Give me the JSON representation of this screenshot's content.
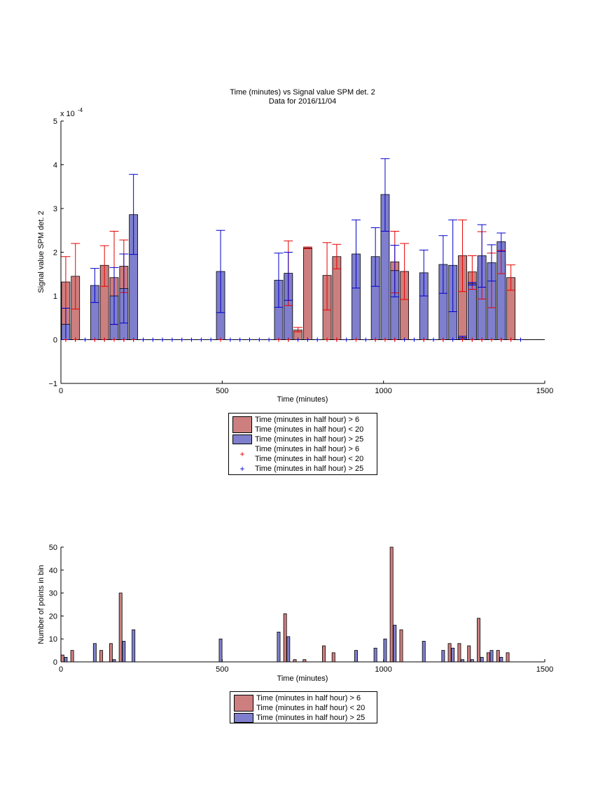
{
  "colors": {
    "red_bar": "#cd7f7f",
    "blue_bar": "#7f7fcd",
    "red_err": "#e60000",
    "blue_err": "#0000cc",
    "axis": "#000000"
  },
  "chart_data": [
    {
      "type": "bar",
      "title": "Time (minutes) vs Signal value SPM det. 2",
      "subtitle": "Data for 2016/11/04",
      "xlabel": "Time (minutes)",
      "ylabel": "Signal value SPM det. 2",
      "y_multiplier_label": "x 10",
      "y_multiplier_exp": "-4",
      "xlim": [
        0,
        1500
      ],
      "ylim": [
        -1,
        5
      ],
      "xticks": [
        "0",
        "500",
        "1000",
        "1500"
      ],
      "yticks": [
        "−1",
        "0",
        "1",
        "2",
        "3",
        "4",
        "5"
      ],
      "series": [
        {
          "name": "Time (minutes in half hour) > 6 Time (minutes in half hour) < 20",
          "color": "red",
          "points": [
            {
              "x": 15,
              "y": 1.32,
              "lo": 0.72,
              "hi": 1.9
            },
            {
              "x": 45,
              "y": 1.45,
              "lo": 0.7,
              "hi": 2.2
            },
            {
              "x": 135,
              "y": 1.7,
              "lo": 1.22,
              "hi": 2.15
            },
            {
              "x": 165,
              "y": 1.42,
              "lo": 0.35,
              "hi": 2.48
            },
            {
              "x": 195,
              "y": 1.68,
              "lo": 1.08,
              "hi": 2.28
            },
            {
              "x": 705,
              "y": 1.48,
              "lo": 0.78,
              "hi": 2.26
            },
            {
              "x": 735,
              "y": 0.22,
              "lo": 0.18,
              "hi": 0.28
            },
            {
              "x": 765,
              "y": 2.1,
              "lo": 2.08,
              "hi": 2.12
            },
            {
              "x": 825,
              "y": 1.47,
              "lo": 0.68,
              "hi": 2.22
            },
            {
              "x": 855,
              "y": 1.9,
              "lo": 1.62,
              "hi": 2.18
            },
            {
              "x": 1035,
              "y": 1.78,
              "lo": 1.07,
              "hi": 2.48
            },
            {
              "x": 1065,
              "y": 1.56,
              "lo": 0.92,
              "hi": 2.2
            },
            {
              "x": 1245,
              "y": 1.92,
              "lo": 1.1,
              "hi": 2.74
            },
            {
              "x": 1275,
              "y": 1.55,
              "lo": 1.15,
              "hi": 1.92
            },
            {
              "x": 1305,
              "y": 1.65,
              "lo": 0.93,
              "hi": 2.47
            },
            {
              "x": 1335,
              "y": 1.36,
              "lo": 0.73,
              "hi": 1.98
            },
            {
              "x": 1365,
              "y": 1.78,
              "lo": 1.51,
              "hi": 2.04
            },
            {
              "x": 1395,
              "y": 1.42,
              "lo": 1.13,
              "hi": 1.71
            }
          ]
        },
        {
          "name": "Time (minutes in half hour) > 25",
          "color": "blue",
          "points": [
            {
              "x": 15,
              "y": 0.35,
              "lo": 0.0,
              "hi": 0.72
            },
            {
              "x": 105,
              "y": 1.24,
              "lo": 0.85,
              "hi": 1.63
            },
            {
              "x": 165,
              "y": 1.0,
              "lo": 0.35,
              "hi": 1.65
            },
            {
              "x": 195,
              "y": 1.17,
              "lo": 0.38,
              "hi": 1.96
            },
            {
              "x": 225,
              "y": 2.86,
              "lo": 1.95,
              "hi": 3.78
            },
            {
              "x": 495,
              "y": 1.56,
              "lo": 0.62,
              "hi": 2.5
            },
            {
              "x": 675,
              "y": 1.36,
              "lo": 0.74,
              "hi": 1.98
            },
            {
              "x": 705,
              "y": 1.52,
              "lo": 0.9,
              "hi": 2.0
            },
            {
              "x": 915,
              "y": 1.96,
              "lo": 1.18,
              "hi": 2.74
            },
            {
              "x": 975,
              "y": 1.9,
              "lo": 1.22,
              "hi": 2.56
            },
            {
              "x": 1005,
              "y": 3.32,
              "lo": 2.48,
              "hi": 4.14
            },
            {
              "x": 1035,
              "y": 1.58,
              "lo": 0.98,
              "hi": 2.16
            },
            {
              "x": 1125,
              "y": 1.53,
              "lo": 1.0,
              "hi": 2.05
            },
            {
              "x": 1185,
              "y": 1.72,
              "lo": 1.06,
              "hi": 2.38
            },
            {
              "x": 1215,
              "y": 1.7,
              "lo": 0.64,
              "hi": 2.74
            },
            {
              "x": 1245,
              "y": 0.05,
              "lo": 0.02,
              "hi": 0.08
            },
            {
              "x": 1275,
              "y": 1.28,
              "lo": 1.25,
              "hi": 1.31
            },
            {
              "x": 1305,
              "y": 1.92,
              "lo": 1.2,
              "hi": 2.63
            },
            {
              "x": 1335,
              "y": 1.76,
              "lo": 1.34,
              "hi": 2.17
            },
            {
              "x": 1365,
              "y": 2.24,
              "lo": 2.02,
              "hi": 2.44
            }
          ]
        }
      ],
      "zero_markers": {
        "red_x": [
          15,
          45,
          105,
          135,
          165,
          195,
          225,
          495,
          675,
          705,
          825,
          855,
          915,
          975,
          1005,
          1035,
          1125,
          1185,
          1245,
          1275,
          1305,
          1335,
          1365,
          1395
        ],
        "blue_x": [
          15,
          45,
          75,
          105,
          135,
          165,
          195,
          225,
          255,
          285,
          315,
          345,
          375,
          405,
          435,
          465,
          495,
          525,
          555,
          585,
          615,
          645,
          675,
          705,
          735,
          765,
          795,
          825,
          855,
          885,
          915,
          945,
          975,
          1005,
          1035,
          1065,
          1095,
          1125,
          1155,
          1185,
          1215,
          1245,
          1275,
          1305,
          1335,
          1365,
          1395,
          1425
        ]
      }
    },
    {
      "type": "bar",
      "xlabel": "Time (minutes)",
      "ylabel": "Number of points in bin",
      "xlim": [
        0,
        1500
      ],
      "ylim": [
        0,
        50
      ],
      "xticks": [
        "0",
        "500",
        "1000",
        "1500"
      ],
      "yticks": [
        "0",
        "10",
        "20",
        "30",
        "40",
        "50"
      ],
      "series": [
        {
          "name": "Time (minutes in half hour) > 6 Time (minutes in half hour) < 20",
          "color": "red",
          "points": [
            {
              "x": 5,
              "y": 3
            },
            {
              "x": 35,
              "y": 5
            },
            {
              "x": 125,
              "y": 5
            },
            {
              "x": 155,
              "y": 8
            },
            {
              "x": 185,
              "y": 30
            },
            {
              "x": 695,
              "y": 21
            },
            {
              "x": 725,
              "y": 1
            },
            {
              "x": 755,
              "y": 1
            },
            {
              "x": 815,
              "y": 7
            },
            {
              "x": 845,
              "y": 4
            },
            {
              "x": 1025,
              "y": 50
            },
            {
              "x": 1055,
              "y": 14
            },
            {
              "x": 1205,
              "y": 8
            },
            {
              "x": 1235,
              "y": 8
            },
            {
              "x": 1265,
              "y": 7
            },
            {
              "x": 1295,
              "y": 19
            },
            {
              "x": 1325,
              "y": 4
            },
            {
              "x": 1355,
              "y": 5
            },
            {
              "x": 1385,
              "y": 4
            }
          ]
        },
        {
          "name": "Time (minutes in half hour) > 25",
          "color": "blue",
          "points": [
            {
              "x": 15,
              "y": 2
            },
            {
              "x": 105,
              "y": 8
            },
            {
              "x": 165,
              "y": 1
            },
            {
              "x": 195,
              "y": 9
            },
            {
              "x": 225,
              "y": 14
            },
            {
              "x": 495,
              "y": 10
            },
            {
              "x": 675,
              "y": 13
            },
            {
              "x": 705,
              "y": 11
            },
            {
              "x": 915,
              "y": 5
            },
            {
              "x": 975,
              "y": 6
            },
            {
              "x": 1005,
              "y": 10
            },
            {
              "x": 1035,
              "y": 16
            },
            {
              "x": 1125,
              "y": 9
            },
            {
              "x": 1185,
              "y": 5
            },
            {
              "x": 1215,
              "y": 6
            },
            {
              "x": 1245,
              "y": 1
            },
            {
              "x": 1275,
              "y": 1
            },
            {
              "x": 1305,
              "y": 2
            },
            {
              "x": 1335,
              "y": 5
            },
            {
              "x": 1365,
              "y": 2
            }
          ]
        }
      ]
    }
  ],
  "legend1": {
    "row1": "Time (minutes in half hour) > 6",
    "row2": "Time (minutes in half hour) < 20",
    "row3": "Time (minutes in half hour) > 25",
    "row4": "Time (minutes in half hour) > 6",
    "row5": "Time (minutes in half hour) < 20",
    "row6": "Time (minutes in half hour) > 25",
    "marker": "+"
  },
  "legend2": {
    "row1": "Time (minutes in half hour) > 6",
    "row2": "Time (minutes in half hour) < 20",
    "row3": "Time (minutes in half hour) > 25"
  }
}
